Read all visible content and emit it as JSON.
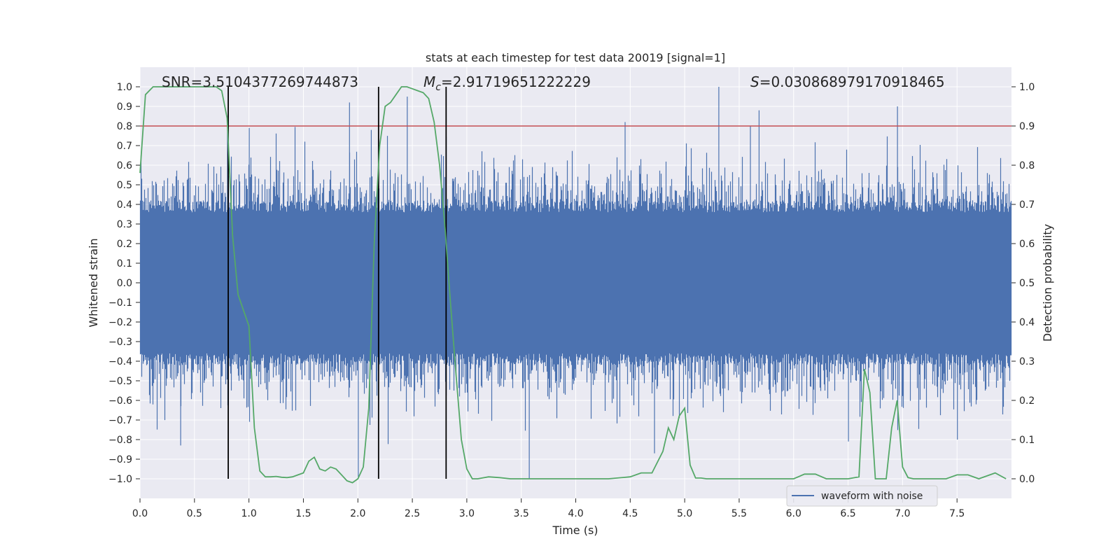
{
  "chart_data": {
    "type": "line",
    "title": "stats at each timestep for test data 20019 [signal=1]",
    "xlabel": "Time (s)",
    "ylabel": "Whitened strain",
    "y2label": "Detection probability",
    "xlim": [
      0.0,
      8.0
    ],
    "ylim": [
      -1.1,
      1.1
    ],
    "y2lim": [
      -0.05,
      1.05
    ],
    "xticks": [
      "0.0",
      "0.5",
      "1.0",
      "1.5",
      "2.0",
      "2.5",
      "3.0",
      "3.5",
      "4.0",
      "4.5",
      "5.0",
      "5.5",
      "6.0",
      "6.5",
      "7.0",
      "7.5"
    ],
    "yticks": [
      "1.0",
      "0.9",
      "0.8",
      "0.7",
      "0.6",
      "0.5",
      "0.4",
      "0.3",
      "0.2",
      "0.1",
      "0.0",
      "−0.1",
      "−0.2",
      "−0.3",
      "−0.4",
      "−0.5",
      "−0.6",
      "−0.7",
      "−0.8",
      "−0.9",
      "−1.0"
    ],
    "y2ticks": [
      "1.0",
      "0.9",
      "0.8",
      "0.7",
      "0.6",
      "0.5",
      "0.4",
      "0.3",
      "0.2",
      "0.1",
      "0.0"
    ],
    "grid": true,
    "legend": {
      "position": "bottom-right",
      "entries": [
        "waveform with noise"
      ]
    },
    "annotations": {
      "snr": "SNR=3.5104377269744873",
      "mc_symbol": "M",
      "mc_sub": "c",
      "mc_value": "=2.91719651222229",
      "s_symbol": "S",
      "s_value": "=0.030868979170918465"
    },
    "threshold": {
      "axis": "y",
      "value": 0.8,
      "color": "#c44e52"
    },
    "vlines": [
      0.81,
      2.19,
      2.81
    ],
    "series": [
      {
        "name": "waveform with noise",
        "axis": "left",
        "color": "#4c72b0",
        "seed": 20019,
        "duration": 8.0,
        "envelope": 0.4,
        "peaks": [
          {
            "t": 0.37,
            "v": -0.83
          },
          {
            "t": 0.8,
            "v": 0.78
          },
          {
            "t": 1.0,
            "v": 0.79
          },
          {
            "t": 1.92,
            "v": 0.92
          },
          {
            "t": 2.0,
            "v": -0.99
          },
          {
            "t": 2.12,
            "v": 0.78
          },
          {
            "t": 2.45,
            "v": 0.95
          },
          {
            "t": 3.57,
            "v": -1.0
          },
          {
            "t": 4.45,
            "v": 0.82
          },
          {
            "t": 4.72,
            "v": -0.87
          },
          {
            "t": 5.31,
            "v": 1.0
          },
          {
            "t": 5.6,
            "v": 0.8
          },
          {
            "t": 5.68,
            "v": 0.88
          },
          {
            "t": 6.5,
            "v": -0.81
          },
          {
            "t": 6.95,
            "v": 0.9
          },
          {
            "t": 7.5,
            "v": -0.8
          }
        ]
      },
      {
        "name": "",
        "axis": "right",
        "color": "#55a868",
        "x": [
          0.0,
          0.05,
          0.12,
          0.2,
          0.3,
          0.4,
          0.5,
          0.6,
          0.7,
          0.75,
          0.8,
          0.85,
          0.9,
          0.95,
          1.0,
          1.05,
          1.1,
          1.15,
          1.2,
          1.25,
          1.3,
          1.35,
          1.4,
          1.45,
          1.5,
          1.55,
          1.6,
          1.65,
          1.7,
          1.75,
          1.8,
          1.85,
          1.9,
          1.95,
          2.0,
          2.05,
          2.1,
          2.15,
          2.2,
          2.25,
          2.3,
          2.35,
          2.4,
          2.45,
          2.5,
          2.55,
          2.6,
          2.65,
          2.7,
          2.75,
          2.8,
          2.85,
          2.9,
          2.95,
          3.0,
          3.05,
          3.1,
          3.2,
          3.3,
          3.4,
          3.5,
          3.7,
          4.0,
          4.3,
          4.5,
          4.6,
          4.7,
          4.8,
          4.85,
          4.9,
          4.95,
          5.0,
          5.05,
          5.1,
          5.15,
          5.2,
          5.3,
          5.5,
          5.7,
          6.0,
          6.1,
          6.2,
          6.3,
          6.4,
          6.5,
          6.6,
          6.65,
          6.7,
          6.75,
          6.8,
          6.85,
          6.9,
          6.95,
          7.0,
          7.05,
          7.1,
          7.2,
          7.4,
          7.5,
          7.6,
          7.7,
          7.85,
          7.95
        ],
        "y": [
          0.78,
          0.98,
          1.0,
          1.0,
          1.0,
          1.0,
          1.0,
          1.0,
          1.0,
          0.99,
          0.92,
          0.62,
          0.47,
          0.43,
          0.39,
          0.13,
          0.02,
          0.005,
          0.005,
          0.006,
          0.004,
          0.003,
          0.005,
          0.01,
          0.015,
          0.045,
          0.055,
          0.025,
          0.02,
          0.03,
          0.025,
          0.01,
          -0.005,
          -0.01,
          0.0,
          0.03,
          0.18,
          0.6,
          0.85,
          0.95,
          0.96,
          0.98,
          1.0,
          1.0,
          0.995,
          0.99,
          0.985,
          0.97,
          0.91,
          0.8,
          0.64,
          0.45,
          0.27,
          0.1,
          0.025,
          0.0,
          0.0,
          0.005,
          0.003,
          0.0,
          0.0,
          0.0,
          0.0,
          0.0,
          0.005,
          0.015,
          0.015,
          0.07,
          0.13,
          0.1,
          0.16,
          0.18,
          0.035,
          0.002,
          0.002,
          0.0,
          0.0,
          0.0,
          0.0,
          0.0,
          0.012,
          0.012,
          0.0,
          0.0,
          0.0,
          0.005,
          0.28,
          0.22,
          0.0,
          0.0,
          0.0,
          0.13,
          0.2,
          0.03,
          0.003,
          0.0,
          0.0,
          0.0,
          0.01,
          0.01,
          0.0,
          0.015,
          0.0
        ]
      }
    ]
  }
}
